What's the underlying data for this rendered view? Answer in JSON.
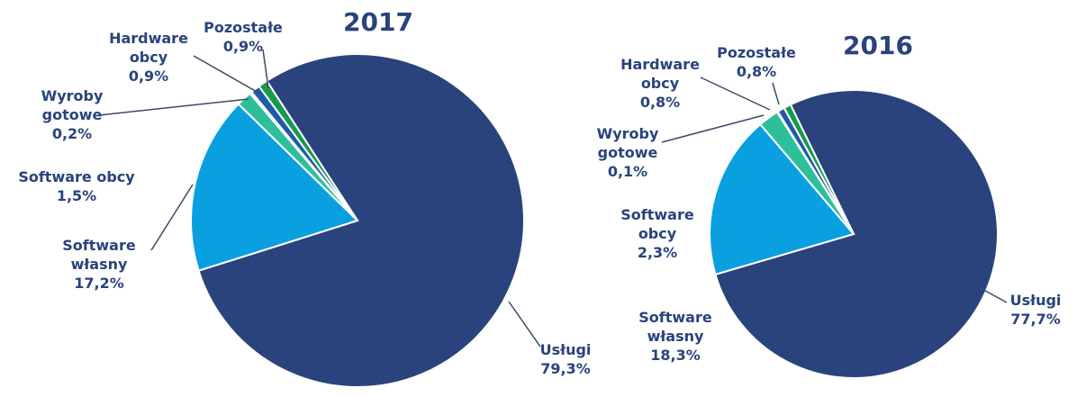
{
  "chart_data": [
    {
      "type": "pie",
      "title": "2017",
      "categories": [
        "Usługi",
        "Software własny",
        "Software obcy",
        "Wyroby gotowe",
        "Hardware obcy",
        "Pozostałe"
      ],
      "values": [
        79.3,
        17.2,
        1.5,
        0.2,
        0.9,
        0.9
      ],
      "value_labels": [
        "79,3%",
        "17,2%",
        "1,5%",
        "0,2%",
        "0,9%",
        "0,9%"
      ],
      "colors": [
        "#2a437c",
        "#0aa0e0",
        "#2dbf9c",
        "#e8f0f4",
        "#1f5aa6",
        "#179a4e"
      ]
    },
    {
      "type": "pie",
      "title": "2016",
      "categories": [
        "Usługi",
        "Software własny",
        "Software obcy",
        "Wyroby gotowe",
        "Hardware obcy",
        "Pozostałe"
      ],
      "values": [
        77.7,
        18.3,
        2.3,
        0.1,
        0.8,
        0.8
      ],
      "value_labels": [
        "77,7%",
        "18,3%",
        "2,3%",
        "0,1%",
        "0,8%",
        "0,8%"
      ],
      "colors": [
        "#2a437c",
        "#0aa0e0",
        "#2dbf9c",
        "#e8f0f4",
        "#1f5aa6",
        "#179a4e"
      ]
    }
  ]
}
